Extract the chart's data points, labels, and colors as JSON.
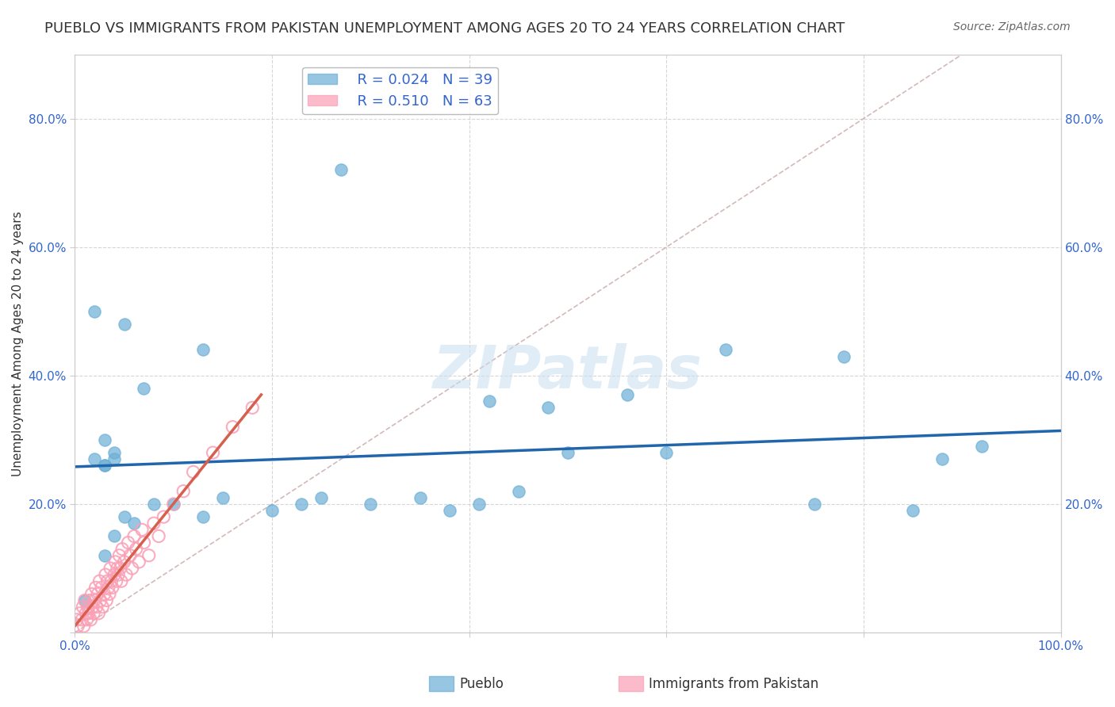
{
  "title": "PUEBLO VS IMMIGRANTS FROM PAKISTAN UNEMPLOYMENT AMONG AGES 20 TO 24 YEARS CORRELATION CHART",
  "source": "Source: ZipAtlas.com",
  "ylabel": "Unemployment Among Ages 20 to 24 years",
  "xlabel": "",
  "legend_label1": "Pueblo",
  "legend_label2": "Immigrants from Pakistan",
  "R1": "0.024",
  "N1": "39",
  "R2": "0.510",
  "N2": "63",
  "color_blue": "#6baed6",
  "color_pink": "#fa9fb5",
  "color_blue_line": "#2166ac",
  "color_pink_line": "#d6604d",
  "color_diag": "#c8a8a8",
  "watermark": "ZIPatlas",
  "xlim": [
    0.0,
    1.0
  ],
  "ylim": [
    0.0,
    0.9
  ],
  "xticks": [
    0.0,
    0.2,
    0.4,
    0.6,
    0.8,
    1.0
  ],
  "yticks": [
    0.0,
    0.2,
    0.4,
    0.6,
    0.8
  ],
  "ytick_labels": [
    "",
    "20.0%",
    "40.0%",
    "60.0%",
    "80.0%"
  ],
  "xtick_labels": [
    "0.0%",
    "",
    "",
    "",
    "",
    "100.0%"
  ],
  "pueblo_x": [
    0.02,
    0.05,
    0.13,
    0.02,
    0.07,
    0.03,
    0.04,
    0.04,
    0.03,
    0.01,
    0.27,
    0.42,
    0.56,
    0.48,
    0.66,
    0.78,
    0.85,
    0.92,
    0.03,
    0.03,
    0.04,
    0.05,
    0.06,
    0.08,
    0.1,
    0.13,
    0.15,
    0.2,
    0.23,
    0.25,
    0.3,
    0.35,
    0.38,
    0.41,
    0.45,
    0.5,
    0.6,
    0.75,
    0.88
  ],
  "pueblo_y": [
    0.27,
    0.48,
    0.44,
    0.5,
    0.38,
    0.26,
    0.27,
    0.28,
    0.3,
    0.05,
    0.72,
    0.36,
    0.37,
    0.35,
    0.44,
    0.43,
    0.19,
    0.29,
    0.26,
    0.12,
    0.15,
    0.18,
    0.17,
    0.2,
    0.2,
    0.18,
    0.21,
    0.19,
    0.2,
    0.21,
    0.2,
    0.21,
    0.19,
    0.2,
    0.22,
    0.28,
    0.28,
    0.2,
    0.27
  ],
  "pak_x": [
    0.002,
    0.003,
    0.005,
    0.007,
    0.008,
    0.009,
    0.01,
    0.011,
    0.012,
    0.013,
    0.014,
    0.015,
    0.016,
    0.017,
    0.018,
    0.019,
    0.02,
    0.021,
    0.022,
    0.023,
    0.024,
    0.025,
    0.026,
    0.027,
    0.028,
    0.03,
    0.031,
    0.032,
    0.033,
    0.034,
    0.035,
    0.036,
    0.037,
    0.038,
    0.04,
    0.041,
    0.042,
    0.043,
    0.044,
    0.045,
    0.046,
    0.047,
    0.048,
    0.05,
    0.052,
    0.054,
    0.056,
    0.058,
    0.06,
    0.062,
    0.065,
    0.068,
    0.07,
    0.075,
    0.08,
    0.085,
    0.09,
    0.1,
    0.11,
    0.12,
    0.14,
    0.16,
    0.18
  ],
  "pak_y": [
    0.02,
    0.01,
    0.03,
    0.02,
    0.04,
    0.01,
    0.05,
    0.03,
    0.02,
    0.04,
    0.03,
    0.05,
    0.02,
    0.06,
    0.04,
    0.03,
    0.05,
    0.07,
    0.04,
    0.06,
    0.03,
    0.08,
    0.05,
    0.07,
    0.04,
    0.06,
    0.09,
    0.05,
    0.08,
    0.07,
    0.06,
    0.1,
    0.08,
    0.07,
    0.09,
    0.11,
    0.08,
    0.1,
    0.09,
    0.12,
    0.1,
    0.08,
    0.13,
    0.11,
    0.09,
    0.14,
    0.12,
    0.1,
    0.15,
    0.13,
    0.11,
    0.16,
    0.14,
    0.12,
    0.17,
    0.15,
    0.18,
    0.2,
    0.22,
    0.25,
    0.28,
    0.32,
    0.35
  ],
  "title_fontsize": 13,
  "axis_label_fontsize": 11,
  "tick_fontsize": 11,
  "legend_fontsize": 13
}
